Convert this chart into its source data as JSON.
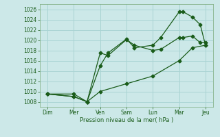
{
  "xlabel": "Pression niveau de la mer( hPa )",
  "bg_color": "#cce8e8",
  "grid_color": "#aad4d4",
  "line_color": "#1a5c1a",
  "ylim": [
    1007,
    1027
  ],
  "xlim": [
    -0.3,
    6.3
  ],
  "xtick_positions": [
    0,
    1,
    2,
    3,
    4,
    5,
    6
  ],
  "xtick_labels": [
    "Dim",
    "Mer",
    "Ven",
    "Sam",
    "Lun",
    "Mar",
    "Jeu"
  ],
  "line1_x": [
    0.0,
    1.0,
    1.5,
    2.0,
    2.3,
    3.0,
    3.3,
    4.0,
    4.3,
    5.0,
    5.15,
    5.5,
    5.8,
    6.0
  ],
  "line1_y": [
    1009.5,
    1009.0,
    1008.0,
    1017.5,
    1017.0,
    1020.1,
    1019.0,
    1018.0,
    1018.2,
    1020.5,
    1020.5,
    1020.8,
    1019.5,
    1019.5
  ],
  "line2_x": [
    0.0,
    1.0,
    1.5,
    2.0,
    2.3,
    3.0,
    3.3,
    4.0,
    4.3,
    5.0,
    5.15,
    5.5,
    5.8,
    6.0
  ],
  "line2_y": [
    1009.5,
    1009.0,
    1008.0,
    1015.0,
    1017.5,
    1020.2,
    1018.5,
    1019.0,
    1020.5,
    1025.5,
    1025.5,
    1024.5,
    1023.0,
    1019.0
  ],
  "line3_x": [
    0.0,
    1.0,
    1.5,
    2.0,
    3.0,
    4.0,
    5.0,
    5.5,
    6.0
  ],
  "line3_y": [
    1009.5,
    1009.5,
    1008.0,
    1010.0,
    1011.5,
    1013.0,
    1016.0,
    1018.5,
    1019.0
  ]
}
